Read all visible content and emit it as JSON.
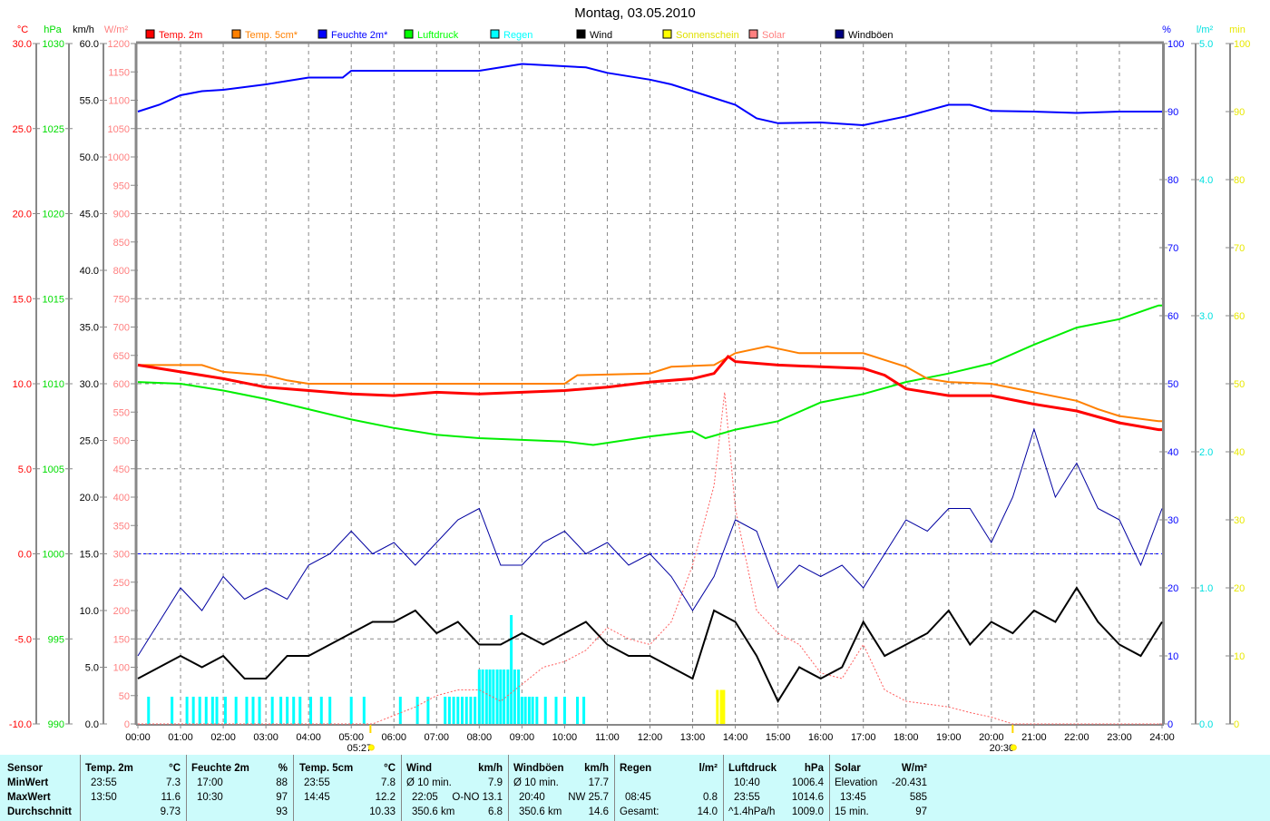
{
  "chart_data": {
    "type": "line",
    "title": "Montag, 03.05.2010",
    "x_range_hours": [
      0,
      24
    ],
    "x_tick_labels": [
      "00:00",
      "01:00",
      "02:00",
      "03:00",
      "04:00",
      "05:00",
      "06:00",
      "07:00",
      "08:00",
      "09:00",
      "10:00",
      "11:00",
      "12:00",
      "13:00",
      "14:00",
      "15:00",
      "16:00",
      "17:00",
      "18:00",
      "19:00",
      "20:00",
      "21:00",
      "22:00",
      "23:00",
      "24:00"
    ],
    "grid": true,
    "sunrise": {
      "label": "05:27",
      "hour": 5.45
    },
    "sunset": {
      "label": "20:30",
      "hour": 20.5
    },
    "axes": {
      "temp": {
        "unit": "°C",
        "min": -10,
        "max": 30,
        "step": 5,
        "decimals": 1,
        "color": "#ff0000"
      },
      "pressure": {
        "unit": "hPa",
        "min": 990,
        "max": 1030,
        "step": 5,
        "decimals": 0,
        "color": "#00dd00"
      },
      "wind": {
        "unit": "km/h",
        "min": 0,
        "max": 60,
        "step": 5,
        "decimals": 1,
        "color": "#000000"
      },
      "solar": {
        "unit": "W/m²",
        "min": 0,
        "max": 1200,
        "step": 50,
        "decimals": 0,
        "color": "#ff8080"
      },
      "humidity": {
        "unit": "%",
        "min": 0,
        "max": 100,
        "step": 10,
        "decimals": 0,
        "color": "#0000ff"
      },
      "rain": {
        "unit": "l/m²",
        "min": 0,
        "max": 5,
        "step": 1,
        "decimals": 1,
        "color": "#00e0e0"
      },
      "sunshine": {
        "unit": "min",
        "min": 0,
        "max": 100,
        "step": 10,
        "decimals": 0,
        "color": "#e8e800"
      }
    },
    "legend": [
      {
        "label": "Temp. 2m",
        "color": "#ff0000"
      },
      {
        "label": "Temp. 5cm*",
        "color": "#ff8000"
      },
      {
        "label": "Feuchte 2m*",
        "color": "#0000ff"
      },
      {
        "label": "Luftdruck",
        "color": "#00ff00"
      },
      {
        "label": "Regen",
        "color": "#00ffff"
      },
      {
        "label": "Wind",
        "color": "#000000"
      },
      {
        "label": "Sonnenschein",
        "color": "#ffff00"
      },
      {
        "label": "Solar",
        "color": "#ff8080"
      },
      {
        "label": "Windböen",
        "color": "#000080"
      }
    ],
    "series": {
      "temp2m": {
        "axis": "temp",
        "color": "#ff0000",
        "points": [
          [
            0,
            11.1
          ],
          [
            1,
            10.7
          ],
          [
            2,
            10.3
          ],
          [
            3,
            9.8
          ],
          [
            4,
            9.6
          ],
          [
            5,
            9.4
          ],
          [
            6,
            9.3
          ],
          [
            7,
            9.5
          ],
          [
            8,
            9.4
          ],
          [
            9,
            9.5
          ],
          [
            10,
            9.6
          ],
          [
            11,
            9.8
          ],
          [
            12,
            10.1
          ],
          [
            13,
            10.3
          ],
          [
            13.5,
            10.6
          ],
          [
            13.83,
            11.6
          ],
          [
            14,
            11.3
          ],
          [
            15,
            11.1
          ],
          [
            16,
            11.0
          ],
          [
            17,
            10.9
          ],
          [
            17.5,
            10.5
          ],
          [
            18,
            9.7
          ],
          [
            19,
            9.3
          ],
          [
            20,
            9.3
          ],
          [
            21,
            8.8
          ],
          [
            22,
            8.4
          ],
          [
            23,
            7.7
          ],
          [
            23.92,
            7.3
          ],
          [
            24,
            7.3
          ]
        ]
      },
      "temp5cm": {
        "axis": "temp",
        "color": "#ff8000",
        "points": [
          [
            0,
            11.1
          ],
          [
            1.5,
            11.1
          ],
          [
            2,
            10.7
          ],
          [
            3,
            10.5
          ],
          [
            3.5,
            10.2
          ],
          [
            4,
            10.0
          ],
          [
            10,
            10.0
          ],
          [
            10.3,
            10.5
          ],
          [
            12,
            10.6
          ],
          [
            12.5,
            11.0
          ],
          [
            13.5,
            11.1
          ],
          [
            14,
            11.8
          ],
          [
            14.75,
            12.2
          ],
          [
            15.5,
            11.8
          ],
          [
            17,
            11.8
          ],
          [
            17.5,
            11.4
          ],
          [
            18,
            11.0
          ],
          [
            18.5,
            10.3
          ],
          [
            19,
            10.1
          ],
          [
            20,
            10.0
          ],
          [
            21,
            9.5
          ],
          [
            22,
            9.0
          ],
          [
            22.5,
            8.5
          ],
          [
            23,
            8.1
          ],
          [
            23.92,
            7.8
          ],
          [
            24,
            7.8
          ]
        ]
      },
      "humidity": {
        "axis": "humidity",
        "color": "#0000ff",
        "points": [
          [
            0,
            90
          ],
          [
            0.5,
            91
          ],
          [
            1,
            92.4
          ],
          [
            1.5,
            93
          ],
          [
            2,
            93.2
          ],
          [
            3,
            94
          ],
          [
            4,
            95
          ],
          [
            4.8,
            95
          ],
          [
            5,
            96
          ],
          [
            6,
            96
          ],
          [
            8,
            96
          ],
          [
            9,
            97
          ],
          [
            10.5,
            96.5
          ],
          [
            11,
            95.7
          ],
          [
            12,
            94.7
          ],
          [
            12.5,
            94
          ],
          [
            13,
            93
          ],
          [
            14,
            91
          ],
          [
            14.5,
            89
          ],
          [
            15,
            88.3
          ],
          [
            16,
            88.4
          ],
          [
            17,
            88
          ],
          [
            18,
            89.3
          ],
          [
            19,
            91
          ],
          [
            19.5,
            91
          ],
          [
            20,
            90.1
          ],
          [
            21,
            90
          ],
          [
            22,
            89.8
          ],
          [
            23,
            90
          ],
          [
            24,
            90
          ]
        ]
      },
      "pressure": {
        "axis": "pressure",
        "color": "#00ee00",
        "points": [
          [
            0,
            1010.1
          ],
          [
            1,
            1010.0
          ],
          [
            2,
            1009.6
          ],
          [
            3,
            1009.1
          ],
          [
            4,
            1008.5
          ],
          [
            5,
            1007.9
          ],
          [
            6,
            1007.4
          ],
          [
            7,
            1007.0
          ],
          [
            8,
            1006.8
          ],
          [
            9,
            1006.7
          ],
          [
            10,
            1006.6
          ],
          [
            10.67,
            1006.4
          ],
          [
            12,
            1006.9
          ],
          [
            13,
            1007.2
          ],
          [
            13.3,
            1006.8
          ],
          [
            14,
            1007.3
          ],
          [
            15,
            1007.8
          ],
          [
            16,
            1008.9
          ],
          [
            17,
            1009.4
          ],
          [
            18,
            1010.1
          ],
          [
            19,
            1010.6
          ],
          [
            20,
            1011.2
          ],
          [
            21,
            1012.3
          ],
          [
            22,
            1013.3
          ],
          [
            23,
            1013.8
          ],
          [
            23.92,
            1014.6
          ],
          [
            24,
            1014.6
          ]
        ]
      },
      "wind": {
        "axis": "wind",
        "color": "#000000",
        "step_hours": 0.5,
        "values": [
          4,
          5,
          6,
          5,
          6,
          4,
          4,
          6,
          6,
          7,
          8,
          9,
          9,
          10,
          8,
          9,
          7,
          7,
          8,
          7,
          8,
          9,
          7,
          6,
          6,
          5,
          4,
          10,
          9,
          6,
          2,
          5,
          4,
          5,
          9,
          6,
          7,
          8,
          10,
          7,
          9,
          8,
          10,
          9,
          12,
          9,
          7,
          6,
          9
        ]
      },
      "gusts": {
        "axis": "wind",
        "color": "#0000a0",
        "step_hours": 0.5,
        "values": [
          6,
          9,
          12,
          10,
          13,
          11,
          12,
          11,
          14,
          15,
          17,
          15,
          16,
          14,
          16,
          18,
          19,
          14,
          14,
          16,
          17,
          15,
          16,
          14,
          15,
          13,
          10,
          13,
          18,
          17,
          12,
          14,
          13,
          14,
          12,
          15,
          18,
          17,
          19,
          19,
          16,
          20,
          26,
          20,
          23,
          19,
          18,
          14,
          19
        ]
      },
      "solar": {
        "axis": "solar",
        "color": "#ff6060",
        "points": [
          [
            0,
            0
          ],
          [
            5.5,
            0
          ],
          [
            6,
            15
          ],
          [
            6.5,
            30
          ],
          [
            7,
            50
          ],
          [
            7.5,
            60
          ],
          [
            8,
            60
          ],
          [
            8.5,
            40
          ],
          [
            9,
            70
          ],
          [
            9.5,
            100
          ],
          [
            10,
            110
          ],
          [
            10.5,
            130
          ],
          [
            11,
            170
          ],
          [
            11.5,
            150
          ],
          [
            12,
            140
          ],
          [
            12.5,
            180
          ],
          [
            13,
            280
          ],
          [
            13.5,
            420
          ],
          [
            13.75,
            585
          ],
          [
            14,
            380
          ],
          [
            14.5,
            200
          ],
          [
            15,
            160
          ],
          [
            15.5,
            140
          ],
          [
            16,
            90
          ],
          [
            16.5,
            80
          ],
          [
            17,
            140
          ],
          [
            17.5,
            60
          ],
          [
            18,
            40
          ],
          [
            18.5,
            35
          ],
          [
            19,
            30
          ],
          [
            19.5,
            20
          ],
          [
            20,
            12
          ],
          [
            20.5,
            0
          ],
          [
            24,
            0
          ]
        ]
      },
      "rain": {
        "axis": "rain",
        "color": "#00ffff",
        "bars": [
          [
            0.25,
            0.2
          ],
          [
            0.8,
            0.2
          ],
          [
            1.15,
            0.2
          ],
          [
            1.3,
            0.2
          ],
          [
            1.45,
            0.2
          ],
          [
            1.6,
            0.2
          ],
          [
            1.75,
            0.2
          ],
          [
            1.85,
            0.2
          ],
          [
            2.05,
            0.2
          ],
          [
            2.3,
            0.2
          ],
          [
            2.55,
            0.2
          ],
          [
            2.7,
            0.2
          ],
          [
            2.85,
            0.2
          ],
          [
            3.15,
            0.2
          ],
          [
            3.35,
            0.2
          ],
          [
            3.5,
            0.2
          ],
          [
            3.65,
            0.2
          ],
          [
            3.8,
            0.2
          ],
          [
            4.05,
            0.2
          ],
          [
            4.3,
            0.2
          ],
          [
            4.5,
            0.2
          ],
          [
            5.0,
            0.2
          ],
          [
            5.3,
            0.2
          ],
          [
            6.15,
            0.2
          ],
          [
            6.55,
            0.2
          ],
          [
            6.8,
            0.2
          ],
          [
            7.2,
            0.2
          ],
          [
            7.3,
            0.2
          ],
          [
            7.4,
            0.2
          ],
          [
            7.5,
            0.2
          ],
          [
            7.6,
            0.2
          ],
          [
            7.7,
            0.2
          ],
          [
            7.8,
            0.2
          ],
          [
            7.9,
            0.2
          ],
          [
            8.0,
            0.4
          ],
          [
            8.08,
            0.4
          ],
          [
            8.17,
            0.4
          ],
          [
            8.25,
            0.4
          ],
          [
            8.33,
            0.4
          ],
          [
            8.42,
            0.4
          ],
          [
            8.5,
            0.4
          ],
          [
            8.58,
            0.4
          ],
          [
            8.67,
            0.4
          ],
          [
            8.75,
            0.8
          ],
          [
            8.83,
            0.4
          ],
          [
            8.92,
            0.4
          ],
          [
            9.0,
            0.2
          ],
          [
            9.08,
            0.2
          ],
          [
            9.17,
            0.2
          ],
          [
            9.25,
            0.2
          ],
          [
            9.35,
            0.2
          ],
          [
            9.55,
            0.2
          ],
          [
            9.8,
            0.2
          ],
          [
            10.0,
            0.2
          ],
          [
            10.3,
            0.2
          ],
          [
            10.45,
            0.2
          ]
        ]
      },
      "sunshine": {
        "axis": "sunshine",
        "color": "#ffff00",
        "bars": [
          [
            13.58,
            5
          ],
          [
            13.67,
            5
          ],
          [
            13.73,
            5
          ]
        ]
      }
    }
  },
  "stats": {
    "sensor": {
      "header": "Sensor",
      "rows": [
        "MinWert",
        "MaxWert",
        "Durchschnitt"
      ]
    },
    "temp2m": {
      "header": "Temp. 2m",
      "unit": "°C",
      "min_time": "23:55",
      "min": "7.3",
      "max_time": "13:50",
      "max": "11.6",
      "avg": "9.73"
    },
    "humidity": {
      "header": "Feuchte 2m",
      "unit": "%",
      "min_time": "17:00",
      "min": "88",
      "max_time": "10:30",
      "max": "97",
      "avg": "93"
    },
    "temp5cm": {
      "header": "Temp. 5cm",
      "unit": "°C",
      "min_time": "23:55",
      "min": "7.8",
      "max_time": "14:45",
      "max": "12.2",
      "avg": "10.33"
    },
    "wind": {
      "header": "Wind",
      "unit": "km/h",
      "min_label": "Ø 10 min.",
      "min": "7.9",
      "max_time": "22:05",
      "max": "O-NO 13.1",
      "avg_label": "350.6 km",
      "avg": "6.8"
    },
    "gusts": {
      "header": "Windböen",
      "unit": "km/h",
      "min_label": "Ø 10 min.",
      "min": "17.7",
      "max_time": "20:40",
      "max": "NW 25.7",
      "avg_label": "350.6 km",
      "avg": "14.6"
    },
    "rain": {
      "header": "Regen",
      "unit": "l/m²",
      "max_time": "08:45",
      "max": "0.8",
      "avg_label": "Gesamt:",
      "avg": "14.0"
    },
    "pressure": {
      "header": "Luftdruck",
      "unit": "hPa",
      "min_time": "10:40",
      "min": "1006.4",
      "max_time": "23:55",
      "max": "1014.6",
      "avg_label": "^1.4hPa/h",
      "avg": "1009.0"
    },
    "solar": {
      "header": "Solar",
      "unit": "W/m²",
      "min_label": "Elevation",
      "min": "-20.431",
      "max_time": "13:45",
      "max": "585",
      "avg_label": "15 min.",
      "avg": "97"
    }
  }
}
